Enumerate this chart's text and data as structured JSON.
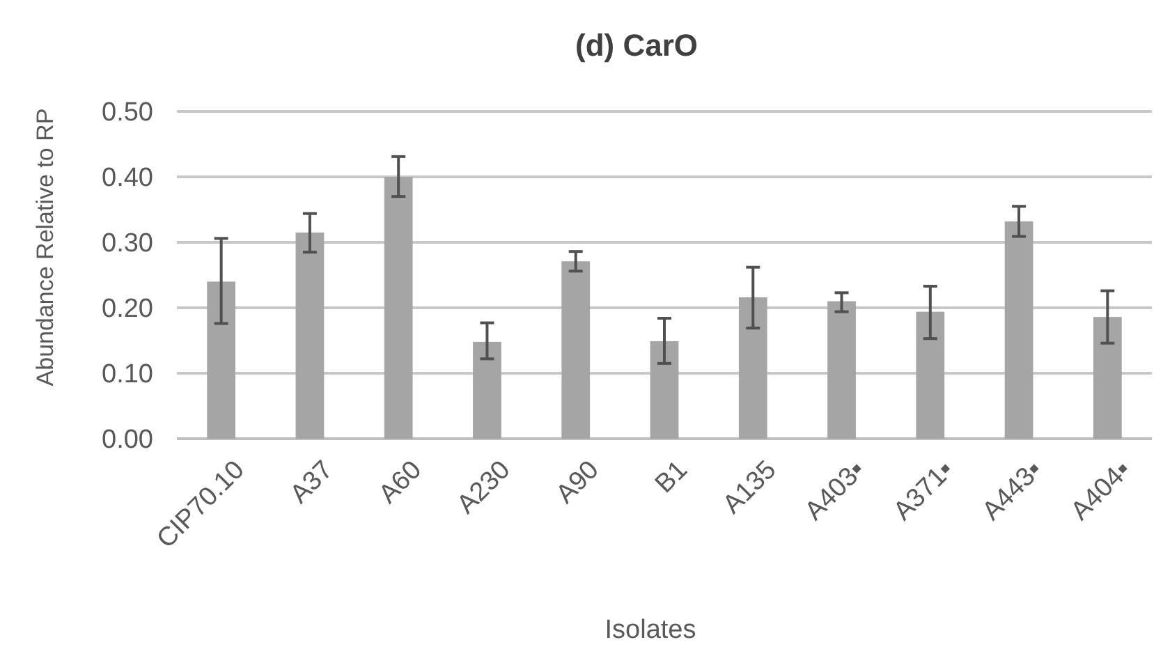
{
  "chart_data": {
    "type": "bar",
    "title": "(d) CarO",
    "xlabel": "Isolates",
    "ylabel": "Abundance Relative to RP",
    "categories": [
      "CIP70.10",
      "A37",
      "A60",
      "A230",
      "A90",
      "B1",
      "A135",
      "A403▪",
      "A371▪",
      "A443▪",
      "A404▪"
    ],
    "values": [
      0.24,
      0.315,
      0.4,
      0.148,
      0.271,
      0.149,
      0.216,
      0.21,
      0.194,
      0.332,
      0.186
    ],
    "errors": [
      [
        0.176,
        0.306
      ],
      [
        0.285,
        0.344
      ],
      [
        0.37,
        0.431
      ],
      [
        0.122,
        0.177
      ],
      [
        0.256,
        0.286
      ],
      [
        0.115,
        0.184
      ],
      [
        0.169,
        0.262
      ],
      [
        0.194,
        0.223
      ],
      [
        0.153,
        0.233
      ],
      [
        0.309,
        0.355
      ],
      [
        0.146,
        0.226
      ]
    ],
    "color": "#a5a5a5",
    "ylim": [
      0,
      0.5
    ],
    "yticks": [
      {
        "value": 0,
        "label": "0.00"
      },
      {
        "value": 0.1,
        "label": "0.10"
      },
      {
        "value": 0.2,
        "label": "0.20"
      },
      {
        "value": 0.3,
        "label": "0.30"
      },
      {
        "value": 0.4,
        "label": "0.40"
      },
      {
        "value": 0.5,
        "label": "0.50"
      }
    ],
    "grid": "y"
  }
}
